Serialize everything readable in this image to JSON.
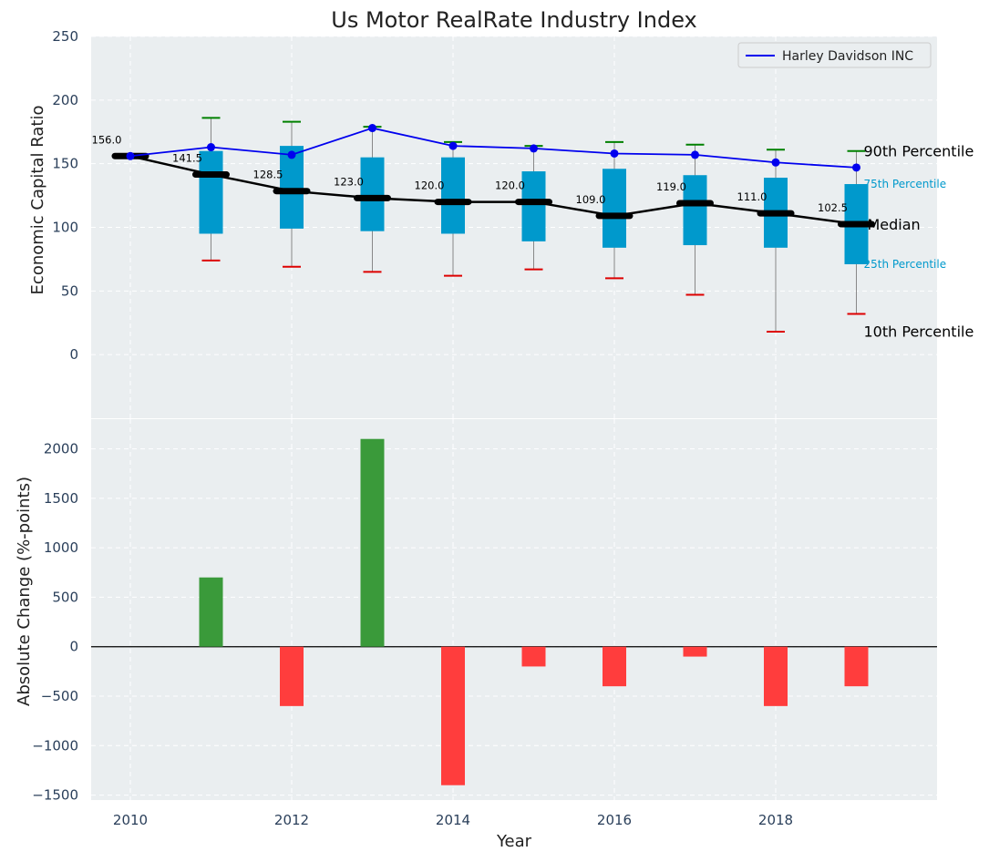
{
  "chart_data": [
    {
      "type": "box",
      "title": "Us Motor RealRate Industry Index",
      "xlabel": "",
      "ylabel": "Economic Capital Ratio",
      "ylim": [
        -50,
        250
      ],
      "yticks": [
        0,
        50,
        100,
        150,
        200,
        250
      ],
      "grid": true,
      "legend": {
        "position": "top-right",
        "entries": [
          "Harley Davidson INC"
        ]
      },
      "x": [
        2010,
        2011,
        2012,
        2013,
        2014,
        2015,
        2016,
        2017,
        2018,
        2019
      ],
      "median": [
        156.0,
        141.5,
        128.5,
        123.0,
        120.0,
        120.0,
        109.0,
        119.0,
        111.0,
        102.5
      ],
      "median_labels": [
        "156.0",
        "141.5",
        "128.5",
        "123.0",
        "120.0",
        "120.0",
        "109.0",
        "119.0",
        "111.0",
        "102.5"
      ],
      "p10": [
        156,
        74,
        69,
        65,
        62,
        67,
        60,
        47,
        18,
        32
      ],
      "p25": [
        156,
        95,
        99,
        97,
        95,
        89,
        84,
        86,
        84,
        71
      ],
      "p75": [
        156,
        160,
        164,
        155,
        155,
        144,
        146,
        141,
        139,
        134
      ],
      "p90": [
        156,
        186,
        183,
        179,
        167,
        164,
        167,
        165,
        161,
        160
      ],
      "series": [
        {
          "name": "Harley Davidson INC",
          "values": [
            156,
            163,
            157,
            178,
            164,
            162,
            158,
            157,
            151,
            147
          ]
        }
      ],
      "annotations": {
        "p90": "90th Percentile",
        "p75": "75th Percentile",
        "median": "Median",
        "p25": "25th Percentile",
        "p10": "10th Percentile"
      },
      "colors": {
        "box": "#0099cc",
        "median": "#000000",
        "company": "#0000ee",
        "p90_cap": "#008000",
        "p10_cap": "#dd0000",
        "background": "#eaeef0"
      }
    },
    {
      "type": "bar",
      "xlabel": "Year",
      "ylabel": "Absolute Change (%-points)",
      "ylim": [
        -1550,
        2300
      ],
      "yticks": [
        -1500,
        -1000,
        -500,
        0,
        500,
        1000,
        1500,
        2000
      ],
      "x": [
        2010,
        2011,
        2012,
        2013,
        2014,
        2015,
        2016,
        2017,
        2018,
        2019
      ],
      "xticks": [
        2010,
        2012,
        2014,
        2016,
        2018
      ],
      "values": [
        0,
        700,
        -600,
        2100,
        -1400,
        -200,
        -400,
        -100,
        -600,
        -400
      ],
      "colors": {
        "positive": "#3a9a3a",
        "negative": "#ff3d3d"
      }
    }
  ]
}
